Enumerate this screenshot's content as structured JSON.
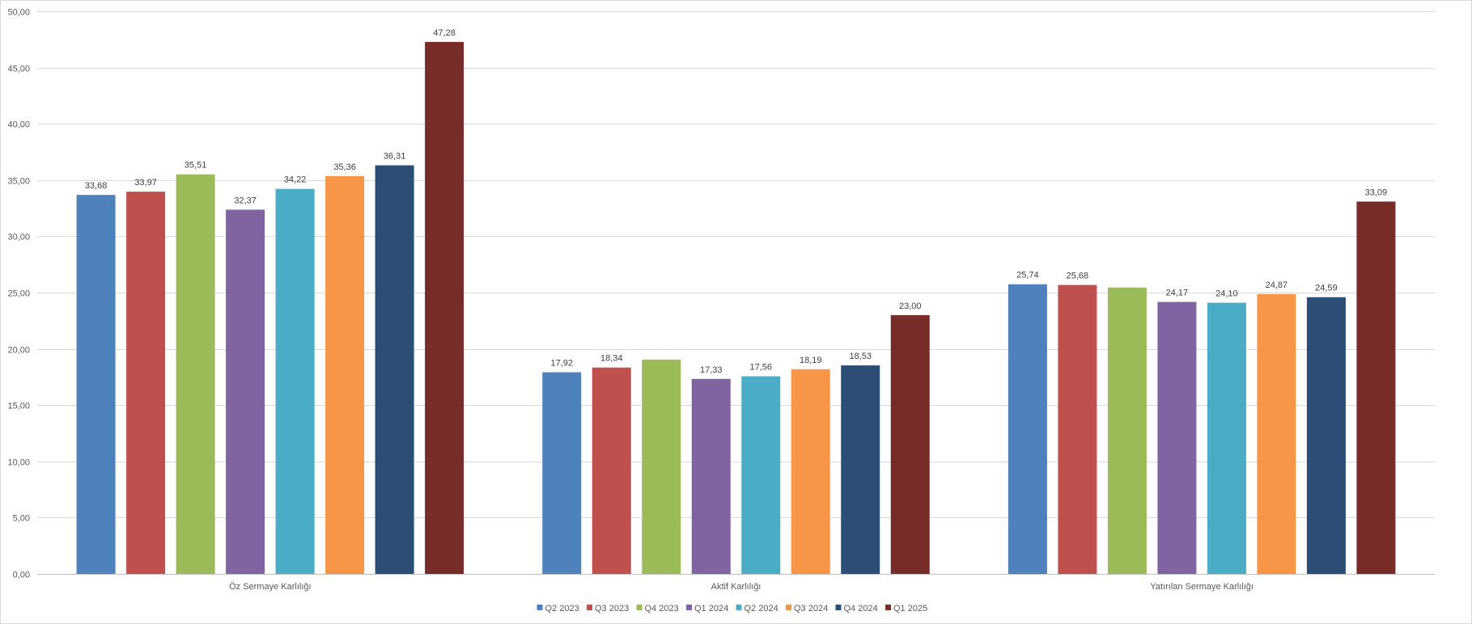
{
  "chart_data": {
    "type": "bar",
    "title": "",
    "xlabel": "",
    "ylabel": "",
    "ylim": [
      0,
      50
    ],
    "yticks": [
      "0,00",
      "5,00",
      "10,00",
      "15,00",
      "20,00",
      "25,00",
      "30,00",
      "35,00",
      "40,00",
      "45,00",
      "50,00"
    ],
    "grid": true,
    "legend_position": "bottom",
    "categories": [
      "Öz Sermaye Karlılığı",
      "Aktif Karlılığı",
      "Yatırılan Sermaye Karlılığı"
    ],
    "series": [
      {
        "name": "Q2 2023",
        "color": "#4f81bd",
        "values": [
          33.68,
          17.92,
          25.74
        ],
        "labels": [
          "33,68",
          "17,92",
          "25,74"
        ]
      },
      {
        "name": "Q3 2023",
        "color": "#c0504d",
        "values": [
          33.97,
          18.34,
          25.68
        ],
        "labels": [
          "33,97",
          "18,34",
          "25,68"
        ]
      },
      {
        "name": "Q4 2023",
        "color": "#9bbb59",
        "values": [
          35.51,
          19.05,
          25.45
        ],
        "labels": [
          "35,51",
          "",
          ""
        ]
      },
      {
        "name": "Q1 2024",
        "color": "#8064a2",
        "values": [
          32.37,
          17.33,
          24.17
        ],
        "labels": [
          "32,37",
          "17,33",
          "24,17"
        ]
      },
      {
        "name": "Q2 2024",
        "color": "#4bacc6",
        "values": [
          34.22,
          17.56,
          24.1
        ],
        "labels": [
          "34,22",
          "17,56",
          "24,10"
        ]
      },
      {
        "name": "Q3 2024",
        "color": "#f79646",
        "values": [
          35.36,
          18.19,
          24.87
        ],
        "labels": [
          "35,36",
          "18,19",
          "24,87"
        ]
      },
      {
        "name": "Q4 2024",
        "color": "#2c4d75",
        "values": [
          36.31,
          18.53,
          24.59
        ],
        "labels": [
          "36,31",
          "18,53",
          "24,59"
        ]
      },
      {
        "name": "Q1 2025",
        "color": "#772c2a",
        "values": [
          47.28,
          23.0,
          33.09
        ],
        "labels": [
          "47,28",
          "23,00",
          "33,09"
        ]
      }
    ]
  }
}
